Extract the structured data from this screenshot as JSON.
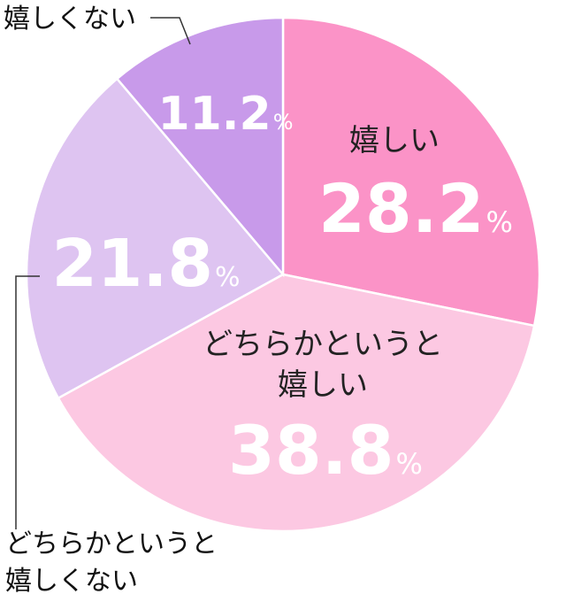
{
  "chart_data": {
    "type": "pie",
    "slices": [
      {
        "label": "嬉しい",
        "value": 28.2,
        "value_text": "28.2",
        "color": "#fb93c7"
      },
      {
        "label": "どちらかというと嬉しい",
        "label_lines": [
          "どちらかというと",
          "嬉しい"
        ],
        "value": 38.8,
        "value_text": "38.8",
        "color": "#fcc8e2"
      },
      {
        "label": "どちらかというと嬉しくない",
        "label_lines": [
          "どちらかというと",
          "嬉しくない"
        ],
        "value": 21.8,
        "value_text": "21.8",
        "color": "#dec4f1"
      },
      {
        "label": "嬉しくない",
        "value": 11.2,
        "value_text": "11.2",
        "color": "#c89aea"
      }
    ],
    "unit": "%",
    "start": "12 o'clock",
    "direction": "clockwise",
    "legend": "none"
  }
}
